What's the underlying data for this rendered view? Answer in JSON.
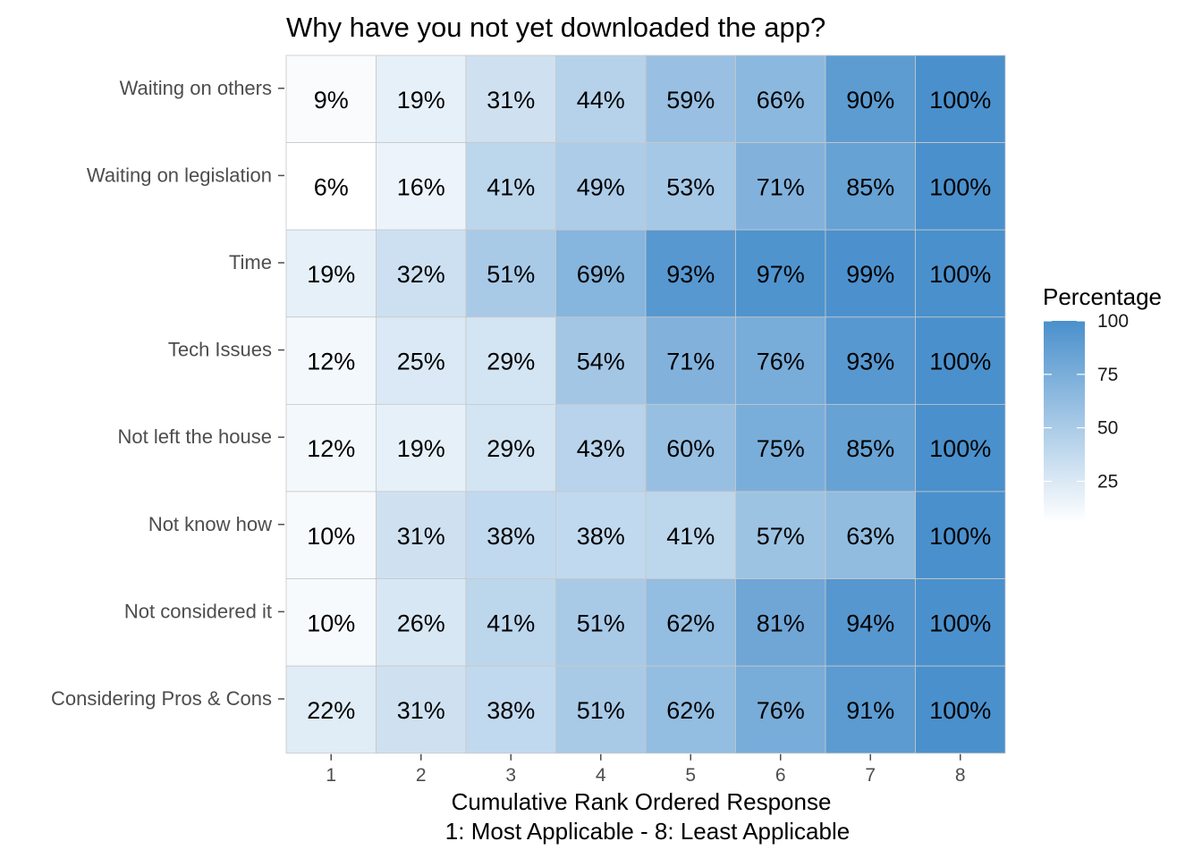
{
  "chart_data": {
    "type": "heatmap",
    "title": "Why have you not yet downloaded the app?",
    "xlabel_lines": [
      "Cumulative Rank Ordered Response",
      "1: Most Applicable - 8: Least Applicable"
    ],
    "x": [
      "1",
      "2",
      "3",
      "4",
      "5",
      "6",
      "7",
      "8"
    ],
    "y": [
      "Waiting on others",
      "Waiting on legislation",
      "Time",
      "Tech Issues",
      "Not left the house",
      "Not know how",
      "Not considered it",
      "Considering Pros & Cons"
    ],
    "values": [
      [
        9,
        19,
        31,
        44,
        59,
        66,
        90,
        100
      ],
      [
        6,
        16,
        41,
        49,
        53,
        71,
        85,
        100
      ],
      [
        19,
        32,
        51,
        69,
        93,
        97,
        99,
        100
      ],
      [
        12,
        25,
        29,
        54,
        71,
        76,
        93,
        100
      ],
      [
        12,
        19,
        29,
        43,
        60,
        75,
        85,
        100
      ],
      [
        10,
        31,
        38,
        38,
        41,
        57,
        63,
        100
      ],
      [
        10,
        26,
        41,
        51,
        62,
        81,
        94,
        100
      ],
      [
        22,
        31,
        38,
        51,
        62,
        76,
        91,
        100
      ]
    ],
    "value_suffix": "%",
    "legend": {
      "title": "Percentage",
      "ticks": [
        "25",
        "50",
        "75",
        "100"
      ],
      "position": "right"
    },
    "colors": {
      "low": "#ffffff",
      "high": "#4a90cc"
    },
    "value_range": [
      6,
      100
    ]
  }
}
